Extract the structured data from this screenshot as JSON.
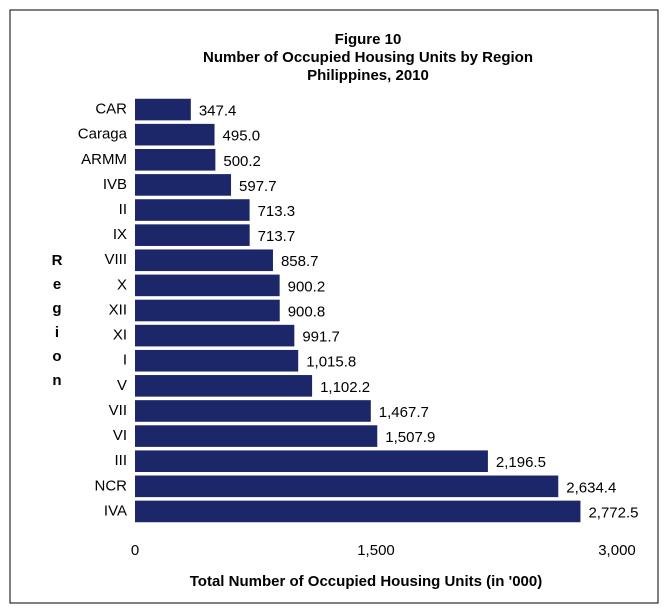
{
  "chart_data": {
    "type": "bar",
    "orientation": "horizontal",
    "title": "Figure 10",
    "subtitle": "Number of Occupied Housing Units by Region",
    "subtitle2": "Philippines, 2010",
    "ylabel": "Region",
    "xlabel": "Total Number of Occupied Housing Units (in '000)",
    "categories": [
      "CAR",
      "Caraga",
      "ARMM",
      "IVB",
      "II",
      "IX",
      "VIII",
      "X",
      "XII",
      "XI",
      "I",
      "V",
      "VII",
      "VI",
      "III",
      "NCR",
      "IVA"
    ],
    "values": [
      347.4,
      495.0,
      500.2,
      597.7,
      713.3,
      713.7,
      858.7,
      900.2,
      900.8,
      991.7,
      1015.8,
      1102.2,
      1467.7,
      1507.9,
      2196.5,
      2634.4,
      2772.5
    ],
    "value_labels": [
      "347.4",
      "495.0",
      "500.2",
      "597.7",
      "713.3",
      "713.7",
      "858.7",
      "900.2",
      "900.8",
      "991.7",
      "1,015.8",
      "1,102.2",
      "1,467.7",
      "1,507.9",
      "2,196.5",
      "2,634.4",
      "2,772.5"
    ],
    "color": "#1b2768",
    "xlim": [
      0,
      3000
    ],
    "xticks": [
      0,
      {
        "value": 1500,
        "label": "1,500"
      },
      {
        "value": 3000,
        "label": "3,000"
      }
    ]
  }
}
